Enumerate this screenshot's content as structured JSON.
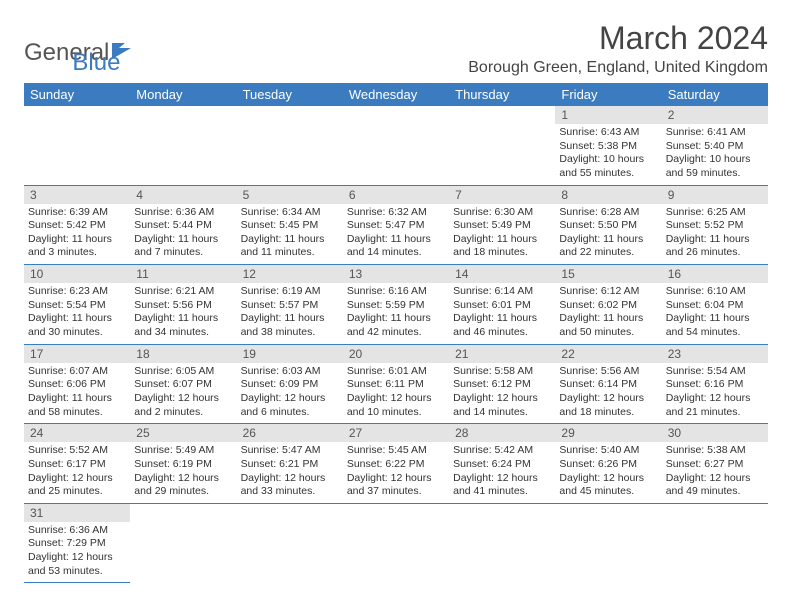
{
  "logo": {
    "text1": "General",
    "text2": "Blue"
  },
  "title": "March 2024",
  "location": "Borough Green, England, United Kingdom",
  "colors": {
    "header_bg": "#3b7bbf",
    "header_fg": "#ffffff",
    "daynum_bg": "#e4e4e4",
    "border": "#3b7bbf"
  },
  "weekdays": [
    "Sunday",
    "Monday",
    "Tuesday",
    "Wednesday",
    "Thursday",
    "Friday",
    "Saturday"
  ],
  "weeks": [
    [
      null,
      null,
      null,
      null,
      null,
      {
        "n": "1",
        "sunrise": "Sunrise: 6:43 AM",
        "sunset": "Sunset: 5:38 PM",
        "daylight": "Daylight: 10 hours and 55 minutes."
      },
      {
        "n": "2",
        "sunrise": "Sunrise: 6:41 AM",
        "sunset": "Sunset: 5:40 PM",
        "daylight": "Daylight: 10 hours and 59 minutes."
      }
    ],
    [
      {
        "n": "3",
        "sunrise": "Sunrise: 6:39 AM",
        "sunset": "Sunset: 5:42 PM",
        "daylight": "Daylight: 11 hours and 3 minutes."
      },
      {
        "n": "4",
        "sunrise": "Sunrise: 6:36 AM",
        "sunset": "Sunset: 5:44 PM",
        "daylight": "Daylight: 11 hours and 7 minutes."
      },
      {
        "n": "5",
        "sunrise": "Sunrise: 6:34 AM",
        "sunset": "Sunset: 5:45 PM",
        "daylight": "Daylight: 11 hours and 11 minutes."
      },
      {
        "n": "6",
        "sunrise": "Sunrise: 6:32 AM",
        "sunset": "Sunset: 5:47 PM",
        "daylight": "Daylight: 11 hours and 14 minutes."
      },
      {
        "n": "7",
        "sunrise": "Sunrise: 6:30 AM",
        "sunset": "Sunset: 5:49 PM",
        "daylight": "Daylight: 11 hours and 18 minutes."
      },
      {
        "n": "8",
        "sunrise": "Sunrise: 6:28 AM",
        "sunset": "Sunset: 5:50 PM",
        "daylight": "Daylight: 11 hours and 22 minutes."
      },
      {
        "n": "9",
        "sunrise": "Sunrise: 6:25 AM",
        "sunset": "Sunset: 5:52 PM",
        "daylight": "Daylight: 11 hours and 26 minutes."
      }
    ],
    [
      {
        "n": "10",
        "sunrise": "Sunrise: 6:23 AM",
        "sunset": "Sunset: 5:54 PM",
        "daylight": "Daylight: 11 hours and 30 minutes."
      },
      {
        "n": "11",
        "sunrise": "Sunrise: 6:21 AM",
        "sunset": "Sunset: 5:56 PM",
        "daylight": "Daylight: 11 hours and 34 minutes."
      },
      {
        "n": "12",
        "sunrise": "Sunrise: 6:19 AM",
        "sunset": "Sunset: 5:57 PM",
        "daylight": "Daylight: 11 hours and 38 minutes."
      },
      {
        "n": "13",
        "sunrise": "Sunrise: 6:16 AM",
        "sunset": "Sunset: 5:59 PM",
        "daylight": "Daylight: 11 hours and 42 minutes."
      },
      {
        "n": "14",
        "sunrise": "Sunrise: 6:14 AM",
        "sunset": "Sunset: 6:01 PM",
        "daylight": "Daylight: 11 hours and 46 minutes."
      },
      {
        "n": "15",
        "sunrise": "Sunrise: 6:12 AM",
        "sunset": "Sunset: 6:02 PM",
        "daylight": "Daylight: 11 hours and 50 minutes."
      },
      {
        "n": "16",
        "sunrise": "Sunrise: 6:10 AM",
        "sunset": "Sunset: 6:04 PM",
        "daylight": "Daylight: 11 hours and 54 minutes."
      }
    ],
    [
      {
        "n": "17",
        "sunrise": "Sunrise: 6:07 AM",
        "sunset": "Sunset: 6:06 PM",
        "daylight": "Daylight: 11 hours and 58 minutes."
      },
      {
        "n": "18",
        "sunrise": "Sunrise: 6:05 AM",
        "sunset": "Sunset: 6:07 PM",
        "daylight": "Daylight: 12 hours and 2 minutes."
      },
      {
        "n": "19",
        "sunrise": "Sunrise: 6:03 AM",
        "sunset": "Sunset: 6:09 PM",
        "daylight": "Daylight: 12 hours and 6 minutes."
      },
      {
        "n": "20",
        "sunrise": "Sunrise: 6:01 AM",
        "sunset": "Sunset: 6:11 PM",
        "daylight": "Daylight: 12 hours and 10 minutes."
      },
      {
        "n": "21",
        "sunrise": "Sunrise: 5:58 AM",
        "sunset": "Sunset: 6:12 PM",
        "daylight": "Daylight: 12 hours and 14 minutes."
      },
      {
        "n": "22",
        "sunrise": "Sunrise: 5:56 AM",
        "sunset": "Sunset: 6:14 PM",
        "daylight": "Daylight: 12 hours and 18 minutes."
      },
      {
        "n": "23",
        "sunrise": "Sunrise: 5:54 AM",
        "sunset": "Sunset: 6:16 PM",
        "daylight": "Daylight: 12 hours and 21 minutes."
      }
    ],
    [
      {
        "n": "24",
        "sunrise": "Sunrise: 5:52 AM",
        "sunset": "Sunset: 6:17 PM",
        "daylight": "Daylight: 12 hours and 25 minutes."
      },
      {
        "n": "25",
        "sunrise": "Sunrise: 5:49 AM",
        "sunset": "Sunset: 6:19 PM",
        "daylight": "Daylight: 12 hours and 29 minutes."
      },
      {
        "n": "26",
        "sunrise": "Sunrise: 5:47 AM",
        "sunset": "Sunset: 6:21 PM",
        "daylight": "Daylight: 12 hours and 33 minutes."
      },
      {
        "n": "27",
        "sunrise": "Sunrise: 5:45 AM",
        "sunset": "Sunset: 6:22 PM",
        "daylight": "Daylight: 12 hours and 37 minutes."
      },
      {
        "n": "28",
        "sunrise": "Sunrise: 5:42 AM",
        "sunset": "Sunset: 6:24 PM",
        "daylight": "Daylight: 12 hours and 41 minutes."
      },
      {
        "n": "29",
        "sunrise": "Sunrise: 5:40 AM",
        "sunset": "Sunset: 6:26 PM",
        "daylight": "Daylight: 12 hours and 45 minutes."
      },
      {
        "n": "30",
        "sunrise": "Sunrise: 5:38 AM",
        "sunset": "Sunset: 6:27 PM",
        "daylight": "Daylight: 12 hours and 49 minutes."
      }
    ],
    [
      {
        "n": "31",
        "sunrise": "Sunrise: 6:36 AM",
        "sunset": "Sunset: 7:29 PM",
        "daylight": "Daylight: 12 hours and 53 minutes."
      },
      null,
      null,
      null,
      null,
      null,
      null
    ]
  ]
}
